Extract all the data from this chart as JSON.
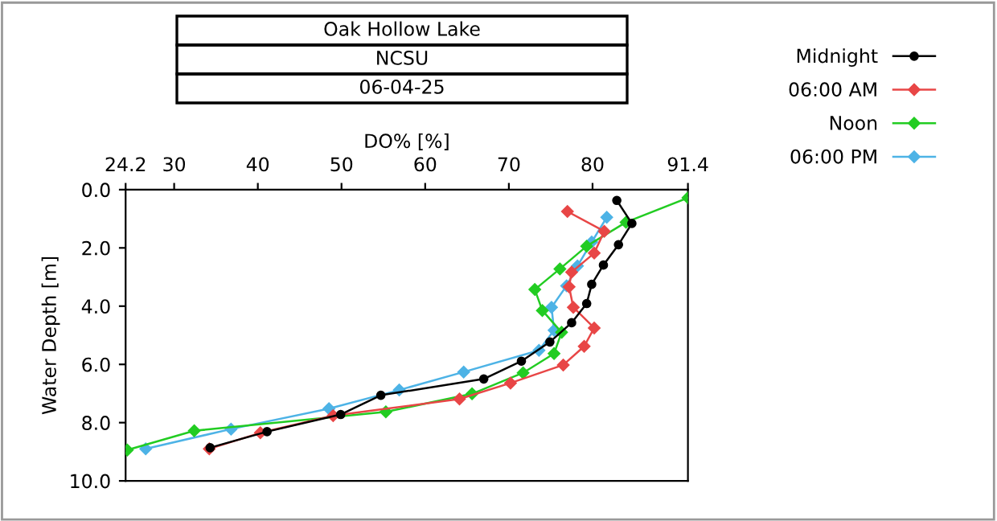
{
  "chart_data": {
    "type": "line",
    "title": "Oak Hollow Lake",
    "subtitle": "NCSU",
    "annotations": [
      "06-04-25"
    ],
    "xlabel": "DO% [%]",
    "ylabel": "Water Depth [m]",
    "xlim": [
      24.2,
      91.4
    ],
    "xticks": [
      24.2,
      30,
      40,
      50,
      60,
      70,
      80,
      91.4
    ],
    "ylim": [
      10,
      0
    ],
    "yticks": [
      {
        "value": 0,
        "label": "0.0"
      },
      {
        "value": 2,
        "label": "2.0"
      },
      {
        "value": 4,
        "label": "4.0"
      },
      {
        "value": 6,
        "label": "6.0"
      },
      {
        "value": 8,
        "label": "8.0"
      },
      {
        "value": 10,
        "label": "10.0"
      }
    ],
    "grid": false,
    "legend": "top right",
    "line_style": "solid",
    "series": [
      {
        "name": "Midnight",
        "color": "#000000",
        "marker": "circle",
        "x": [
          82.9,
          84.7,
          83.1,
          81.3,
          79.9,
          79.3,
          77.5,
          74.9,
          71.5,
          67.0,
          54.7,
          49.9,
          41.1,
          34.3
        ],
        "values": [
          0.37,
          1.16,
          1.89,
          2.59,
          3.25,
          3.91,
          4.57,
          5.23,
          5.89,
          6.5,
          7.06,
          7.72,
          8.31,
          8.86
        ]
      },
      {
        "name": "06:00 AM",
        "color": "#e84646",
        "marker": "diamond",
        "x": [
          77.0,
          81.4,
          80.2,
          77.5,
          77.2,
          77.7,
          80.2,
          79.0,
          76.5,
          70.2,
          64.1,
          49.0,
          40.3,
          34.2
        ],
        "values": [
          0.75,
          1.43,
          2.18,
          2.83,
          3.34,
          4.04,
          4.75,
          5.38,
          6.02,
          6.64,
          7.19,
          7.76,
          8.35,
          8.9
        ]
      },
      {
        "name": "Noon",
        "color": "#22cc22",
        "marker": "diamond",
        "x": [
          91.4,
          84.0,
          79.3,
          76.1,
          73.1,
          74.0,
          76.3,
          75.4,
          71.7,
          65.6,
          55.3,
          32.4,
          24.4
        ],
        "values": [
          0.28,
          1.12,
          1.94,
          2.72,
          3.43,
          4.15,
          4.9,
          5.63,
          6.29,
          7.01,
          7.63,
          8.28,
          8.94
        ]
      },
      {
        "name": "06:00 PM",
        "color": "#4db3e6",
        "marker": "diamond",
        "x": [
          81.7,
          79.9,
          78.2,
          76.9,
          75.1,
          75.4,
          73.6,
          64.6,
          56.9,
          48.5,
          36.8,
          26.6
        ],
        "values": [
          0.95,
          1.8,
          2.62,
          3.3,
          4.04,
          4.83,
          5.52,
          6.26,
          6.88,
          7.52,
          8.22,
          8.9
        ]
      }
    ]
  }
}
